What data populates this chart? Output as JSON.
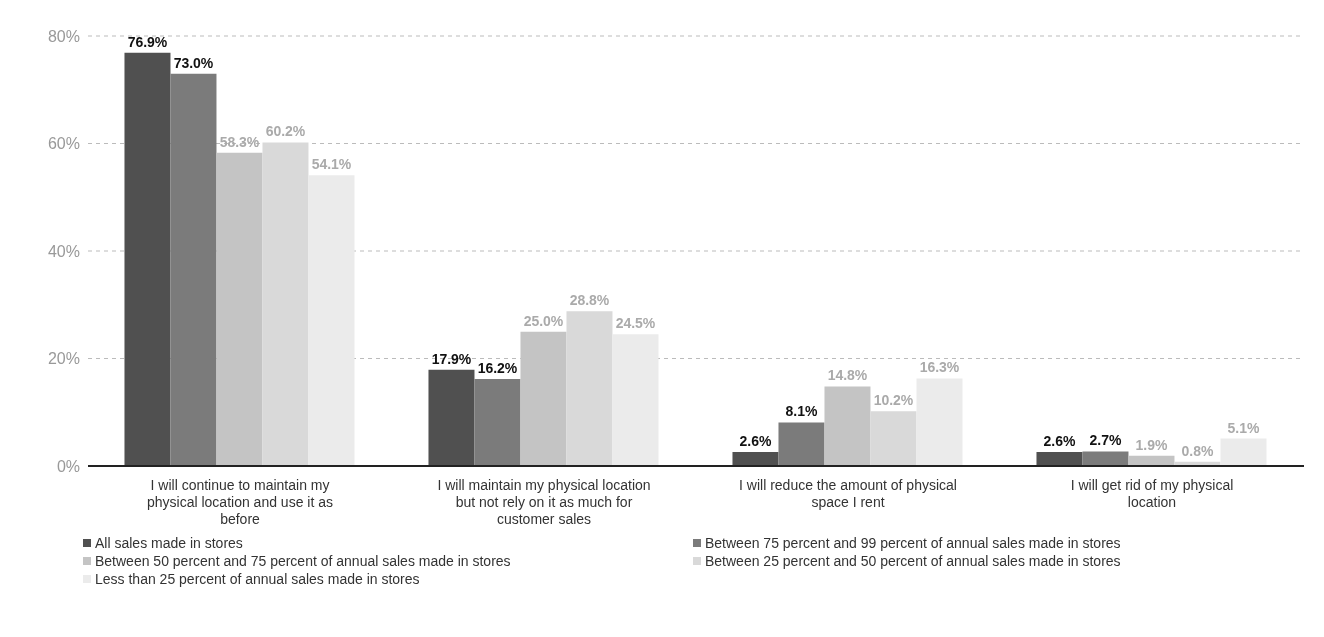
{
  "chart_data": {
    "type": "bar",
    "categories": [
      "I will continue to maintain my physical location and use it as before",
      "I will maintain my physical location but not rely on it as much for customer sales",
      "I will reduce the amount of physical space I rent",
      "I will get rid of my physical location"
    ],
    "series": [
      {
        "name": "All sales made in stores",
        "color": "#505050",
        "values": [
          76.9,
          17.9,
          2.6,
          2.6
        ],
        "value_labels": [
          "76.9%",
          "17.9%",
          "2.6%",
          "2.6%"
        ]
      },
      {
        "name": "Between 75 percent and 99 percent of annual sales made in stores",
        "color": "#7b7b7b",
        "values": [
          73.0,
          16.2,
          8.1,
          2.7
        ],
        "value_labels": [
          "73.0%",
          "16.2%",
          "8.1%",
          "2.7%"
        ]
      },
      {
        "name": "Between 50 percent and 75 percent of annual sales made in stores",
        "color": "#c4c4c4",
        "values": [
          58.3,
          25.0,
          14.8,
          1.9
        ],
        "value_labels": [
          "58.3%",
          "25.0%",
          "14.8%",
          "1.9%"
        ]
      },
      {
        "name": "Between 25 percent and 50 percent of annual sales made in stores",
        "color": "#d9d9d9",
        "values": [
          60.2,
          28.8,
          10.2,
          0.8
        ],
        "value_labels": [
          "60.2%",
          "28.8%",
          "10.2%",
          "0.8%"
        ]
      },
      {
        "name": "Less than 25 percent of annual sales made in stores",
        "color": "#ebebeb",
        "values": [
          54.1,
          24.5,
          16.3,
          5.1
        ],
        "value_labels": [
          "54.1%",
          "24.5%",
          "16.3%",
          "5.1%"
        ]
      }
    ],
    "ylim": [
      0,
      80
    ],
    "yticks": [
      {
        "value": 0,
        "label": "0%"
      },
      {
        "value": 20,
        "label": "20%"
      },
      {
        "value": 40,
        "label": "40%"
      },
      {
        "value": 60,
        "label": "60%"
      },
      {
        "value": 80,
        "label": "80%"
      }
    ],
    "grid": "y",
    "legend": "bottom"
  }
}
